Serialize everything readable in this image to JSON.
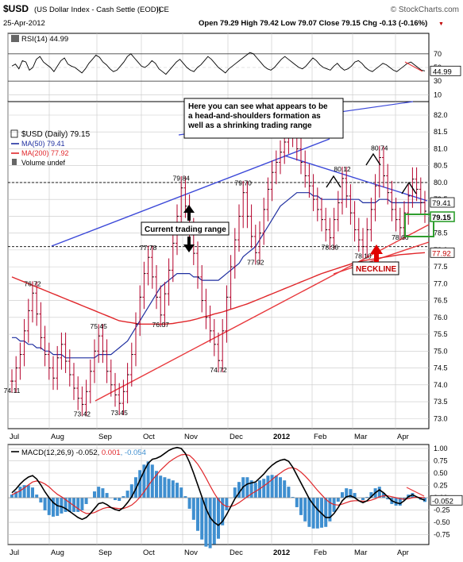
{
  "header": {
    "symbol": "$USD",
    "name": "(US Dollar Index - Cash Settle (EOD))",
    "exchange": "ICE",
    "brand": "© StockCharts.com",
    "date": "25-Apr-2012",
    "ohlc_text": "Open 79.29  High 79.42  Low 79.07  Close 79.15  Chg -0.13 (-0.16%)",
    "chg_marker": "▼"
  },
  "colors": {
    "price_bar": "#b4002a",
    "ma50": "#1f2fa0",
    "ma200": "#e0262a",
    "trend_blue": "#3b48d8",
    "trend_red": "#e8383c",
    "annotation_green": "#2e9e2e",
    "macd_hist": "#3f8fd0",
    "grid": "#c8c8c8"
  },
  "chart_data": [
    {
      "type": "line",
      "panel": "RSI",
      "title": "RSI(14) 44.99",
      "y_ticks": [
        70,
        50,
        30,
        10
      ],
      "ylim": [
        0,
        100
      ],
      "last_value_label": "44.99",
      "values": [
        52,
        55,
        48,
        60,
        58,
        46,
        50,
        62,
        66,
        58,
        54,
        50,
        44,
        52,
        60,
        64,
        55,
        52,
        50,
        46,
        42,
        48,
        56,
        62,
        68,
        65,
        58,
        54,
        48,
        44,
        46,
        52,
        58,
        66,
        70,
        64,
        58,
        52,
        50,
        54,
        60,
        56,
        48,
        44,
        40,
        46,
        52,
        58,
        62,
        56,
        50,
        46,
        44,
        50,
        54,
        60,
        66,
        62,
        56,
        50,
        46,
        42,
        48,
        52,
        56,
        60,
        64,
        68,
        72,
        70,
        64,
        58,
        52,
        48,
        46,
        50,
        56,
        62,
        66,
        62,
        58,
        54,
        50,
        48,
        52,
        58,
        64,
        60,
        54,
        50,
        48,
        46,
        52,
        56,
        50,
        46,
        48,
        52,
        58,
        60,
        56,
        50,
        46,
        44,
        48,
        52,
        56,
        54,
        50,
        46,
        44,
        48,
        52,
        56,
        58,
        54,
        50,
        46,
        44.99
      ]
    },
    {
      "type": "bar",
      "panel": "Price",
      "title": "$USD (Daily) 79.15",
      "legend": [
        {
          "label": "$USD (Daily) 79.15"
        },
        {
          "label": "MA(50) 79.41"
        },
        {
          "label": "MA(200) 77.92"
        },
        {
          "label": "Volume undef"
        }
      ],
      "y_ticks": [
        82.0,
        81.5,
        81.0,
        80.5,
        80.0,
        79.5,
        79.0,
        78.5,
        78.0,
        77.5,
        77.0,
        76.5,
        76.0,
        75.5,
        75.0,
        74.5,
        74.0,
        73.5,
        73.0
      ],
      "ylim": [
        72.7,
        82.4
      ],
      "x_ticks": [
        "Jul",
        "Aug",
        "Sep",
        "Oct",
        "Nov",
        "Dec",
        "2012",
        "Feb",
        "Mar",
        "Apr"
      ],
      "close": [
        74.11,
        74.5,
        74.9,
        75.6,
        76.2,
        76.72,
        76.1,
        75.4,
        74.9,
        74.5,
        74.2,
        74.8,
        75.2,
        74.7,
        74.3,
        73.9,
        73.6,
        73.42,
        73.8,
        74.4,
        75.0,
        75.45,
        75.0,
        74.4,
        74.0,
        73.7,
        73.45,
        73.8,
        74.3,
        74.9,
        75.8,
        76.6,
        77.3,
        77.78,
        77.2,
        76.6,
        76.07,
        76.7,
        77.4,
        78.2,
        79.0,
        79.84,
        79.3,
        78.6,
        77.9,
        77.2,
        76.5,
        76.0,
        75.6,
        75.2,
        74.72,
        75.6,
        76.6,
        77.5,
        78.3,
        79.0,
        79.7,
        79.0,
        78.4,
        77.92,
        78.5,
        79.2,
        79.8,
        80.3,
        80.6,
        80.9,
        81.2,
        81.78,
        81.4,
        81.0,
        80.6,
        80.2,
        79.9,
        79.5,
        79.2,
        78.9,
        78.6,
        78.36,
        78.9,
        79.4,
        80.12,
        79.6,
        79.1,
        78.6,
        78.3,
        78.1,
        78.6,
        79.2,
        79.9,
        80.74,
        80.2,
        79.7,
        79.2,
        78.9,
        78.66,
        79.1,
        79.6,
        80.1,
        79.8,
        79.4,
        79.15
      ],
      "ma50": [
        75.4,
        75.4,
        75.3,
        75.3,
        75.2,
        75.2,
        75.1,
        75.1,
        75.0,
        75.0,
        74.9,
        74.9,
        74.9,
        74.8,
        74.8,
        74.8,
        74.8,
        74.8,
        74.8,
        74.8,
        74.8,
        74.9,
        74.9,
        74.9,
        74.9,
        75.0,
        75.1,
        75.2,
        75.3,
        75.5,
        75.7,
        75.9,
        76.1,
        76.3,
        76.5,
        76.7,
        76.9,
        77.0,
        77.1,
        77.2,
        77.3,
        77.3,
        77.3,
        77.3,
        77.2,
        77.2,
        77.1,
        77.1,
        77.1,
        77.1,
        77.1,
        77.2,
        77.3,
        77.4,
        77.5,
        77.6,
        77.8,
        77.9,
        78.0,
        78.1,
        78.3,
        78.5,
        78.7,
        78.9,
        79.1,
        79.3,
        79.4,
        79.5,
        79.6,
        79.7,
        79.7,
        79.7,
        79.7,
        79.6,
        79.6,
        79.5,
        79.5,
        79.5,
        79.5,
        79.5,
        79.5,
        79.5,
        79.5,
        79.5,
        79.5,
        79.4,
        79.4,
        79.4,
        79.4,
        79.5,
        79.5,
        79.5,
        79.4,
        79.4,
        79.4,
        79.4,
        79.4,
        79.4,
        79.4,
        79.4,
        79.41
      ],
      "ma200": [
        77.2,
        77.15,
        77.1,
        77.05,
        77.0,
        76.95,
        76.9,
        76.85,
        76.8,
        76.75,
        76.7,
        76.65,
        76.6,
        76.55,
        76.5,
        76.45,
        76.4,
        76.35,
        76.3,
        76.25,
        76.2,
        76.15,
        76.1,
        76.05,
        76.0,
        75.95,
        75.9,
        75.88,
        75.86,
        75.84,
        75.82,
        75.8,
        75.8,
        75.8,
        75.8,
        75.8,
        75.8,
        75.8,
        75.81,
        75.82,
        75.84,
        75.86,
        75.88,
        75.9,
        75.93,
        75.96,
        76.0,
        76.03,
        76.06,
        76.1,
        76.13,
        76.16,
        76.2,
        76.24,
        76.28,
        76.32,
        76.36,
        76.4,
        76.45,
        76.5,
        76.55,
        76.6,
        76.65,
        76.7,
        76.75,
        76.8,
        76.85,
        76.9,
        76.95,
        77.0,
        77.05,
        77.1,
        77.15,
        77.2,
        77.25,
        77.3,
        77.34,
        77.38,
        77.42,
        77.46,
        77.5,
        77.54,
        77.58,
        77.62,
        77.65,
        77.68,
        77.7,
        77.72,
        77.74,
        77.76,
        77.78,
        77.8,
        77.82,
        77.84,
        77.86,
        77.87,
        77.88,
        77.89,
        77.9,
        77.91,
        77.92
      ],
      "value_labels": [
        {
          "text": "74.11",
          "i": 0,
          "v": 74.11,
          "pos": "below"
        },
        {
          "text": "76.72",
          "i": 5,
          "v": 76.72,
          "pos": "above"
        },
        {
          "text": "73.42",
          "i": 17,
          "v": 73.42,
          "pos": "below"
        },
        {
          "text": "75.45",
          "i": 21,
          "v": 75.45,
          "pos": "above"
        },
        {
          "text": "73.45",
          "i": 26,
          "v": 73.45,
          "pos": "below"
        },
        {
          "text": "77.78",
          "i": 33,
          "v": 77.78,
          "pos": "above"
        },
        {
          "text": "76.07",
          "i": 36,
          "v": 76.07,
          "pos": "below"
        },
        {
          "text": "79.84",
          "i": 41,
          "v": 79.84,
          "pos": "above"
        },
        {
          "text": "74.72",
          "i": 50,
          "v": 74.72,
          "pos": "below"
        },
        {
          "text": "79.70",
          "i": 56,
          "v": 79.7,
          "pos": "above"
        },
        {
          "text": "77.92",
          "i": 59,
          "v": 77.92,
          "pos": "below"
        },
        {
          "text": "81.78",
          "i": 67,
          "v": 81.78,
          "pos": "above"
        },
        {
          "text": "78.36",
          "i": 77,
          "v": 78.36,
          "pos": "below"
        },
        {
          "text": "80.12",
          "i": 80,
          "v": 80.12,
          "pos": "above"
        },
        {
          "text": "78.10",
          "i": 85,
          "v": 78.1,
          "pos": "below"
        },
        {
          "text": "80.74",
          "i": 89,
          "v": 80.74,
          "pos": "above"
        },
        {
          "text": "78.66",
          "i": 94,
          "v": 78.66,
          "pos": "below"
        }
      ],
      "price_tags": {
        "ma50": "79.41",
        "close": "79.15",
        "ma200": "77.92"
      },
      "range_lines": [
        80.0,
        78.1
      ],
      "annotations": {
        "note": "Here you can see what appears to be a head-and-shoulders formation as well as a shrinking trading range",
        "range_label": "Current trading range",
        "neckline_label": "NECKLINE"
      }
    },
    {
      "type": "line",
      "panel": "MACD",
      "title_parts": [
        "MACD(12,26,9) -0.052, ",
        "0.001",
        ", -0.054"
      ],
      "y_ticks": [
        1.0,
        0.75,
        0.5,
        0.25,
        0.0,
        -0.25,
        -0.5,
        -0.75
      ],
      "ylim": [
        -0.95,
        1.08
      ],
      "last_value_label": "-0.052",
      "macd": [
        0.1,
        0.18,
        0.28,
        0.36,
        0.42,
        0.45,
        0.38,
        0.26,
        0.12,
        0.0,
        -0.1,
        -0.16,
        -0.18,
        -0.22,
        -0.28,
        -0.34,
        -0.4,
        -0.44,
        -0.4,
        -0.32,
        -0.22,
        -0.12,
        -0.1,
        -0.14,
        -0.2,
        -0.24,
        -0.26,
        -0.2,
        -0.1,
        0.02,
        0.18,
        0.36,
        0.54,
        0.7,
        0.78,
        0.8,
        0.84,
        0.9,
        0.96,
        1.0,
        1.02,
        1.0,
        0.9,
        0.72,
        0.5,
        0.26,
        0.02,
        -0.22,
        -0.4,
        -0.5,
        -0.56,
        -0.48,
        -0.34,
        -0.18,
        -0.02,
        0.1,
        0.22,
        0.28,
        0.3,
        0.32,
        0.4,
        0.48,
        0.58,
        0.66,
        0.72,
        0.76,
        0.78,
        0.74,
        0.62,
        0.46,
        0.3,
        0.14,
        -0.02,
        -0.14,
        -0.24,
        -0.32,
        -0.4,
        -0.4,
        -0.32,
        -0.2,
        -0.06,
        0.02,
        0.04,
        0.0,
        -0.06,
        -0.1,
        -0.06,
        0.02,
        0.1,
        0.16,
        0.1,
        0.02,
        -0.06,
        -0.1,
        -0.12,
        -0.06,
        0.02,
        0.06,
        0.02,
        -0.02,
        -0.052
      ],
      "signal": [
        0.06,
        0.1,
        0.14,
        0.2,
        0.26,
        0.32,
        0.34,
        0.32,
        0.28,
        0.22,
        0.14,
        0.07,
        0.02,
        -0.04,
        -0.1,
        -0.16,
        -0.22,
        -0.28,
        -0.32,
        -0.32,
        -0.3,
        -0.26,
        -0.22,
        -0.2,
        -0.2,
        -0.21,
        -0.22,
        -0.22,
        -0.19,
        -0.15,
        -0.08,
        0.01,
        0.12,
        0.24,
        0.36,
        0.46,
        0.56,
        0.64,
        0.72,
        0.78,
        0.83,
        0.87,
        0.88,
        0.86,
        0.78,
        0.68,
        0.55,
        0.4,
        0.24,
        0.09,
        -0.04,
        -0.13,
        -0.18,
        -0.18,
        -0.15,
        -0.1,
        -0.04,
        0.02,
        0.08,
        0.13,
        0.18,
        0.24,
        0.3,
        0.37,
        0.44,
        0.5,
        0.56,
        0.6,
        0.61,
        0.58,
        0.52,
        0.44,
        0.35,
        0.25,
        0.15,
        0.06,
        -0.03,
        -0.1,
        -0.14,
        -0.15,
        -0.13,
        -0.1,
        -0.07,
        -0.06,
        -0.06,
        -0.07,
        -0.07,
        -0.05,
        -0.02,
        0.02,
        0.04,
        0.04,
        0.02,
        0.0,
        -0.02,
        -0.03,
        -0.02,
        0.0,
        0.01,
        0.005,
        0.001
      ],
      "hist_scale": "difference"
    }
  ],
  "x_axis_labels": [
    "Jul",
    "Aug",
    "Sep",
    "Oct",
    "Nov",
    "Dec",
    "2012",
    "Feb",
    "Mar",
    "Apr"
  ]
}
